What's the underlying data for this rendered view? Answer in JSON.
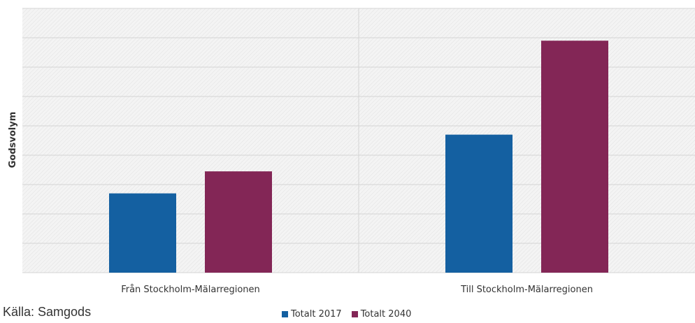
{
  "chart_data": {
    "type": "bar",
    "ylabel": "Godsvolym",
    "categories": [
      "Från Stockholm-Mälarregionen",
      "Till Stockholm-Mälarregionen"
    ],
    "series": [
      {
        "name": "Totalt 2017",
        "color": "#1460a1",
        "values": [
          2.7,
          4.7
        ]
      },
      {
        "name": "Totalt 2040",
        "color": "#832656",
        "values": [
          3.45,
          7.9
        ]
      }
    ],
    "ylim": [
      0,
      9
    ],
    "ytick_count": 9,
    "grid": true,
    "tick_labels_shown": false,
    "legend_position": "bottom"
  },
  "footer": {
    "source": "Källa: Samgods"
  }
}
